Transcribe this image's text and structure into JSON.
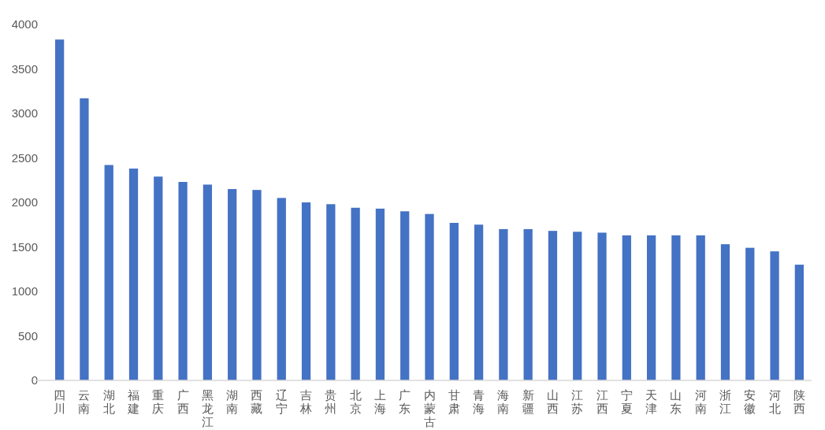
{
  "chart_data": {
    "type": "bar",
    "categories": [
      "四川",
      "云南",
      "湖北",
      "福建",
      "重庆",
      "广西",
      "黑龙江",
      "湖南",
      "西藏",
      "辽宁",
      "吉林",
      "贵州",
      "北京",
      "上海",
      "广东",
      "内蒙古",
      "甘肃",
      "青海",
      "海南",
      "新疆",
      "山西",
      "江苏",
      "江西",
      "宁夏",
      "天津",
      "山东",
      "河南",
      "浙江",
      "安徽",
      "河北",
      "陕西"
    ],
    "values": [
      3830,
      3170,
      2420,
      2380,
      2290,
      2230,
      2200,
      2150,
      2140,
      2050,
      2000,
      1980,
      1940,
      1930,
      1900,
      1870,
      1770,
      1750,
      1700,
      1700,
      1680,
      1670,
      1660,
      1630,
      1630,
      1630,
      1630,
      1530,
      1490,
      1450,
      1300
    ],
    "color": "#4472c4",
    "ylim": [
      0,
      4000
    ],
    "yticks": [
      0,
      500,
      1000,
      1500,
      2000,
      2500,
      3000,
      3500,
      4000
    ]
  }
}
